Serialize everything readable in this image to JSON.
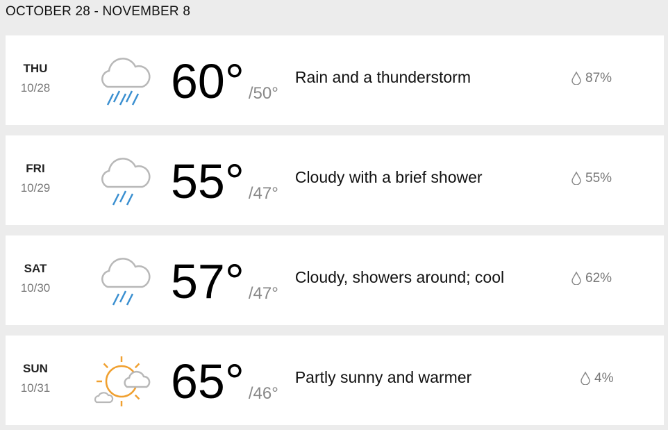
{
  "header": {
    "title": "OCTOBER 28 - NOVEMBER 8"
  },
  "colors": {
    "rain": "#3a8fd0",
    "cloud": "#b8b8b8",
    "sun": "#f0a030",
    "background": "#ececec"
  },
  "days": [
    {
      "dow": "THU",
      "date": "10/28",
      "icon": "rain-cloud-icon",
      "hi": "60°",
      "lo": "/50°",
      "phrase": "Rain and a thunderstorm",
      "precip": "87%"
    },
    {
      "dow": "FRI",
      "date": "10/29",
      "icon": "shower-cloud-icon",
      "hi": "55°",
      "lo": "/47°",
      "phrase": "Cloudy with a brief shower",
      "precip": "55%"
    },
    {
      "dow": "SAT",
      "date": "10/30",
      "icon": "shower-cloud-icon",
      "hi": "57°",
      "lo": "/47°",
      "phrase": "Cloudy, showers around; cool",
      "precip": "62%"
    },
    {
      "dow": "SUN",
      "date": "10/31",
      "icon": "partly-sunny-icon",
      "hi": "65°",
      "lo": "/46°",
      "phrase": "Partly sunny and warmer",
      "precip": "4%"
    }
  ]
}
